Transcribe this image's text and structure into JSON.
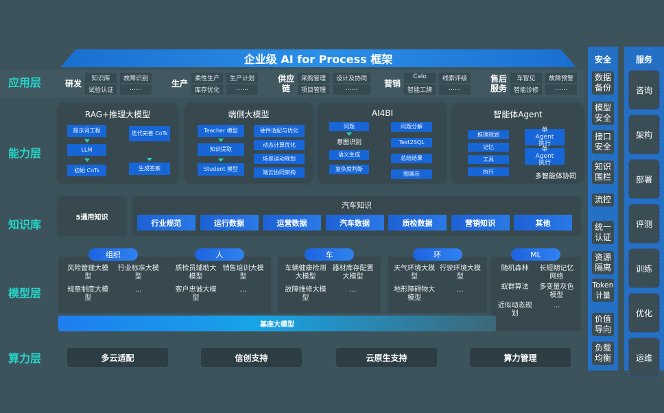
{
  "title": "企业级 AI for Process 框架",
  "layers": {
    "app": "应用层",
    "capability": "能力层",
    "knowledge": "知识库",
    "model": "模型层",
    "compute": "算力层"
  },
  "app_sections": [
    {
      "label": "研发",
      "items": [
        "知识库",
        "故障识别",
        "试验认证",
        "……"
      ]
    },
    {
      "label": "生产",
      "items": [
        "柔性生产",
        "生产计划",
        "库存优化",
        "……"
      ]
    },
    {
      "label": "供应链",
      "items": [
        "采购管理",
        "设计及协同",
        "项目管理",
        "……"
      ]
    },
    {
      "label": "营销",
      "items": [
        "Calo",
        "线索评级",
        "智能工牌",
        "……"
      ]
    },
    {
      "label": "售后服务",
      "items": [
        "车智见",
        "故障预警",
        "智能诊修",
        "……"
      ]
    }
  ],
  "capability": {
    "rag": {
      "title": "RAG+推理大模型",
      "steps": [
        "提示词工程",
        "LLM",
        "初始 CoTs"
      ],
      "right": [
        "迭代完善 CoTs",
        "生成答案"
      ]
    },
    "edge": {
      "title": "端侧大模型",
      "left": [
        "Teacher 模型",
        "知识提取",
        "Student 模型"
      ],
      "right": [
        "硬件适配与优化",
        "动态计算优化",
        "场景运动规划",
        "端云协同架构"
      ]
    },
    "ai4bi": {
      "title": "AI4BI",
      "left_top": "问题",
      "left_mid": "意图识别",
      "left": [
        "语义生成",
        "复杂度判断"
      ],
      "right": [
        "问题分解",
        "Text2SQL",
        "总结结果",
        "图展示"
      ]
    },
    "agent": {
      "title": "智能体Agent",
      "left": [
        "推理规划",
        "记忆",
        "工具",
        "执行"
      ],
      "right": [
        "单Agent执行",
        "单Agent执行"
      ],
      "caption": "多智能体协同"
    }
  },
  "knowledge": {
    "general": "5通用知识",
    "auto_title": "汽车知识",
    "items": [
      "行业规范",
      "运行数据",
      "运营数据",
      "汽车数据",
      "质检数据",
      "营销知识",
      "其他"
    ]
  },
  "model_groups": [
    {
      "header": "组织",
      "items": [
        "风险管理大模型",
        "行业标准大模型",
        "规章制度大模型",
        "…"
      ]
    },
    {
      "header": "人",
      "items": [
        "质检员辅助大模型",
        "销售培训大模型",
        "客户忠诚大模型",
        "…"
      ]
    },
    {
      "header": "车",
      "items": [
        "车辆健康检测大模型",
        "器材库存配置大模型",
        "故障维修大模型",
        "…"
      ]
    },
    {
      "header": "环",
      "items": [
        "天气环境大模型",
        "行驶环境大模型",
        "地形障碍物大模型",
        "…"
      ]
    },
    {
      "header": "ML",
      "items": [
        "随机森林",
        "长短期记忆网络",
        "蚁群算法",
        "多变量灰色模型",
        "近似动态规划",
        "…"
      ]
    }
  ],
  "base_model": "基座大模型",
  "compute": [
    "多云适配",
    "信创支持",
    "云原生支持",
    "算力管理"
  ],
  "security": {
    "title": "安全",
    "items": [
      "数据备份",
      "模型安全",
      "接口安全",
      "知识围栏",
      "流控",
      "统一认证",
      "资源隔离",
      "Token计量",
      "价值导向",
      "负载均衡"
    ]
  },
  "service": {
    "title": "服务",
    "items": [
      "咨询",
      "架构",
      "部署",
      "评测",
      "训练",
      "优化",
      "运维"
    ]
  },
  "colors": {
    "accent_label": "#26d3c8",
    "box_blue": "#1766d8",
    "background": "#3d535b"
  }
}
